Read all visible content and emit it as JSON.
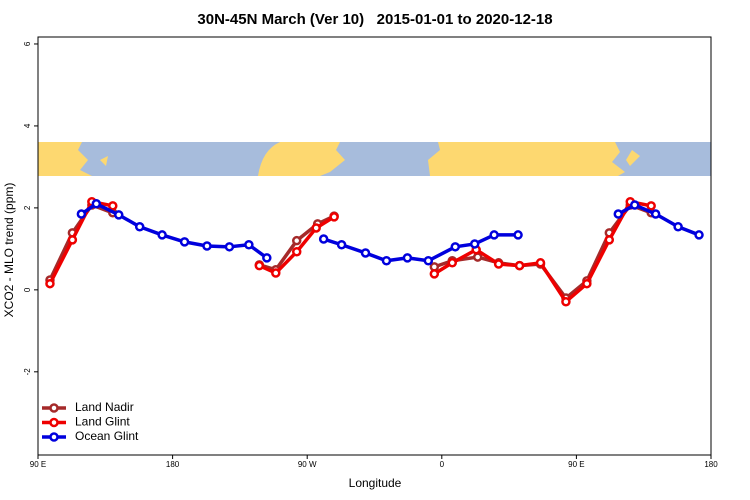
{
  "chart_data": {
    "type": "line",
    "title": "30N-45N March (Ver 10)   2015-01-01 to 2020-12-18",
    "xlabel": "Longitude",
    "ylabel": "XCO2 - MLO trend (ppm)",
    "xlim": [
      90,
      540
    ],
    "xticks": [
      {
        "value": 90,
        "label": "90 E"
      },
      {
        "value": 180,
        "label": "180"
      },
      {
        "value": 270,
        "label": "90 W"
      },
      {
        "value": 360,
        "label": "0"
      },
      {
        "value": 450,
        "label": "90 E"
      },
      {
        "value": 540,
        "label": "180"
      }
    ],
    "ylim": [
      -4.03,
      6.17
    ],
    "yticks": [
      -2,
      0,
      2,
      4,
      6
    ],
    "legend": "bottom-left",
    "series": [
      {
        "name": "Land Nadir",
        "color": "#a52a2a",
        "x": [
          98,
          113,
          126,
          140,
          null,
          238,
          249,
          263,
          277,
          288,
          null,
          355,
          367,
          384,
          398,
          412,
          426,
          443,
          457,
          472,
          486,
          500
        ],
        "values": [
          0.24,
          1.39,
          2.07,
          1.88,
          null,
          0.61,
          0.49,
          1.2,
          1.61,
          1.8,
          null,
          0.56,
          0.71,
          0.8,
          0.66,
          0.59,
          0.63,
          -0.2,
          0.22,
          1.39,
          2.07,
          1.88
        ]
      },
      {
        "name": "Land Glint",
        "color": "#ee0000",
        "x": [
          98,
          113,
          126,
          140,
          null,
          238,
          249,
          263,
          276,
          288,
          null,
          355,
          367,
          383,
          398,
          412,
          426,
          443,
          457,
          472,
          486,
          500
        ],
        "values": [
          0.15,
          1.22,
          2.15,
          2.05,
          null,
          0.59,
          0.41,
          0.93,
          1.51,
          1.78,
          null,
          0.39,
          0.66,
          0.98,
          0.63,
          0.59,
          0.66,
          -0.29,
          0.15,
          1.22,
          2.15,
          2.05
        ]
      },
      {
        "name": "Ocean Glint",
        "color": "#0000dd",
        "x": [
          119,
          129,
          144,
          158,
          173,
          188,
          203,
          218,
          231,
          243,
          null,
          281,
          293,
          309,
          323,
          337,
          351,
          369,
          382,
          395,
          411,
          null,
          478,
          489,
          503,
          518,
          532
        ],
        "values": [
          1.85,
          2.1,
          1.83,
          1.54,
          1.34,
          1.17,
          1.07,
          1.05,
          1.1,
          0.78,
          null,
          1.24,
          1.1,
          0.9,
          0.71,
          0.78,
          0.71,
          1.05,
          1.12,
          1.34,
          1.34,
          null,
          1.85,
          2.07,
          1.85,
          1.54,
          1.34
        ]
      }
    ]
  }
}
